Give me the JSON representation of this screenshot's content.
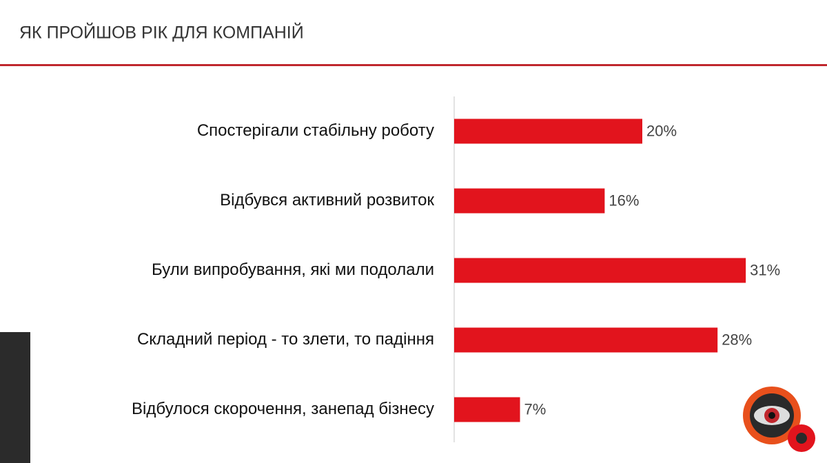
{
  "chart_data": {
    "type": "hbar",
    "title": "ЯК ПРОЙШОВ РІК ДЛЯ КОМПАНІЙ",
    "categories": [
      "Спостерігали стабільну роботу",
      "Відбувся активний розвиток",
      "Були випробування, які ми подолали",
      "Складний період - то злети, то падіння",
      "Відбулося скорочення, занепад бізнесу"
    ],
    "values": [
      20,
      16,
      31,
      28,
      7
    ],
    "value_labels": [
      "20%",
      "16%",
      "31%",
      "28%",
      "7%"
    ],
    "color": "#e2141d",
    "xlim": [
      0,
      40
    ]
  }
}
